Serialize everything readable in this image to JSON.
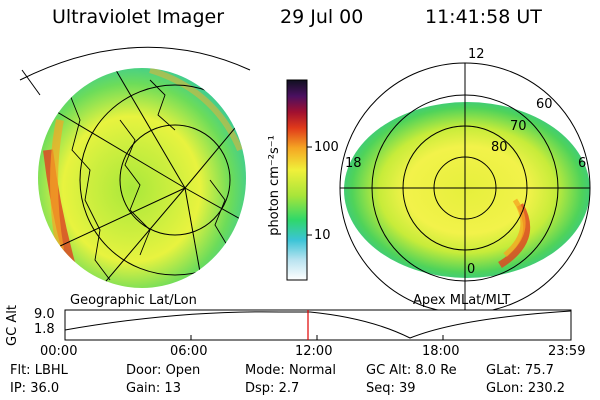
{
  "header": {
    "instrument": "Ultraviolet Imager",
    "date": "29 Jul 00",
    "time": "11:41:58 UT"
  },
  "colorbar": {
    "unit_label": "photon cm⁻²s⁻¹",
    "scale": "log",
    "ticks": [
      "100",
      "10"
    ]
  },
  "geo_panel": {
    "label": "Geographic Lat/Lon"
  },
  "apex_panel": {
    "label": "Apex MLat/MLT",
    "mlt_labels": [
      "12",
      "18",
      "6",
      "0"
    ],
    "lat_labels": [
      "60",
      "70",
      "80"
    ]
  },
  "altitude_plot": {
    "ylabel": "GC Alt",
    "y_ticks": [
      "9.0",
      "1.8"
    ],
    "x_ticks": [
      "00:00",
      "06:00",
      "12:00",
      "18:00",
      "23:59"
    ],
    "current_marker": "11:41:58"
  },
  "info": {
    "row1": [
      {
        "key": "Flt:",
        "value": "LBHL"
      },
      {
        "key": "Door:",
        "value": "Open"
      },
      {
        "key": "Mode:",
        "value": "Normal"
      },
      {
        "key": "GC Alt:",
        "value": "8.0 Re"
      },
      {
        "key": "GLat:",
        "value": "75.7"
      }
    ],
    "row2": [
      {
        "key": "IP:",
        "value": "36.0"
      },
      {
        "key": "Gain:",
        "value": "13"
      },
      {
        "key": "Dsp:",
        "value": "2.7"
      },
      {
        "key": "Seq:",
        "value": "39"
      },
      {
        "key": "GLon:",
        "value": "230.2"
      }
    ]
  },
  "colors": {
    "low": "#2fd86a",
    "mid": "#d8f03a",
    "high": "#f5a623",
    "peak": "#e03a1a",
    "marker": "#e00000"
  }
}
